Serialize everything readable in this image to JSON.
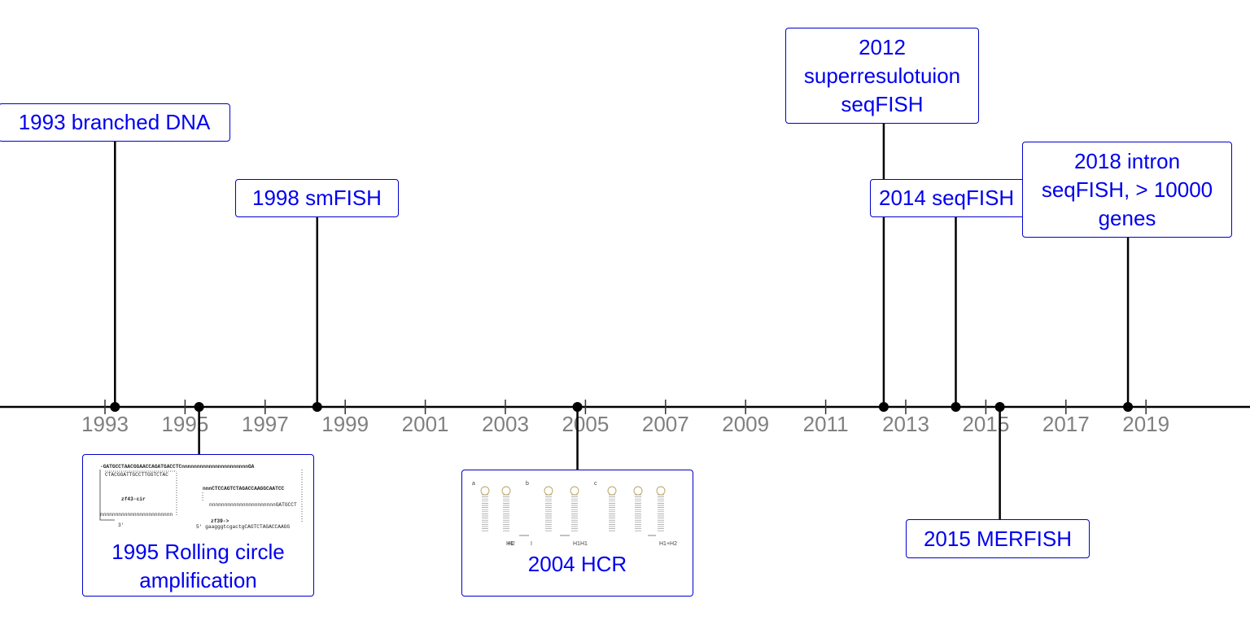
{
  "timeline": {
    "axis_color": "#000000",
    "tick_color": "#808080",
    "label_color": "#0000ee",
    "border_color": "#0000cc",
    "ticks": [
      "1993",
      "1995",
      "1997",
      "1999",
      "2001",
      "2003",
      "2005",
      "2007",
      "2009",
      "2011",
      "2013",
      "2015",
      "2017",
      "2019"
    ],
    "events": [
      {
        "id": "bdna",
        "label": "1993 branched DNA",
        "year": 1993.25,
        "side": "above"
      },
      {
        "id": "rca",
        "label": "1995 Rolling circle\namplification",
        "year": 1995.35,
        "side": "below",
        "figure": "rca-sequence-figure",
        "figure_text": {
          "line1": "-GATGCCTAACGGAACCAGATGACCTCnnnnnnnnnnnnnnnnnnnnnnGA",
          "line2": "CTACGGATTGCCTTGGTCTAC",
          "line3": "nnnCTCCAGTCTAGACCAAGGCAATCC",
          "line4": "zf43-cir",
          "line5": "nnnnnnnnnnnnnnnnnnnnnnGATGCCT",
          "line6": "nnnnnnnnnnnnnnnnnnnnnnnn",
          "line7": "zf39->",
          "line8": "5' gaagggtcgactgCAGTCTAGACCAAGG",
          "line9": "3'"
        }
      },
      {
        "id": "smfish",
        "label": "1998 smFISH",
        "year": 1998.3,
        "side": "above"
      },
      {
        "id": "hcr",
        "label": "2004 HCR",
        "year": 2004.8,
        "side": "below",
        "figure": "hcr-hairpin-figure",
        "figure_text": {
          "a": "a",
          "b": "b",
          "c": "c",
          "h1": "H1",
          "h2": "H2",
          "h1i": "I",
          "h1h1": "H1H1",
          "h1h2": "H1+H2"
        }
      },
      {
        "id": "sr-seqfish",
        "label": "2012\nsuperresulotuion\nseqFISH",
        "year": 2012.45,
        "side": "above"
      },
      {
        "id": "seqfish",
        "label": "2014 seqFISH",
        "year": 2014.25,
        "side": "above"
      },
      {
        "id": "merfish",
        "label": "2015 MERFISH",
        "year": 2015.35,
        "side": "below"
      },
      {
        "id": "intron",
        "label": "2018 intron\nseqFISH, > 10000\ngenes",
        "year": 2018.55,
        "side": "above"
      }
    ]
  }
}
